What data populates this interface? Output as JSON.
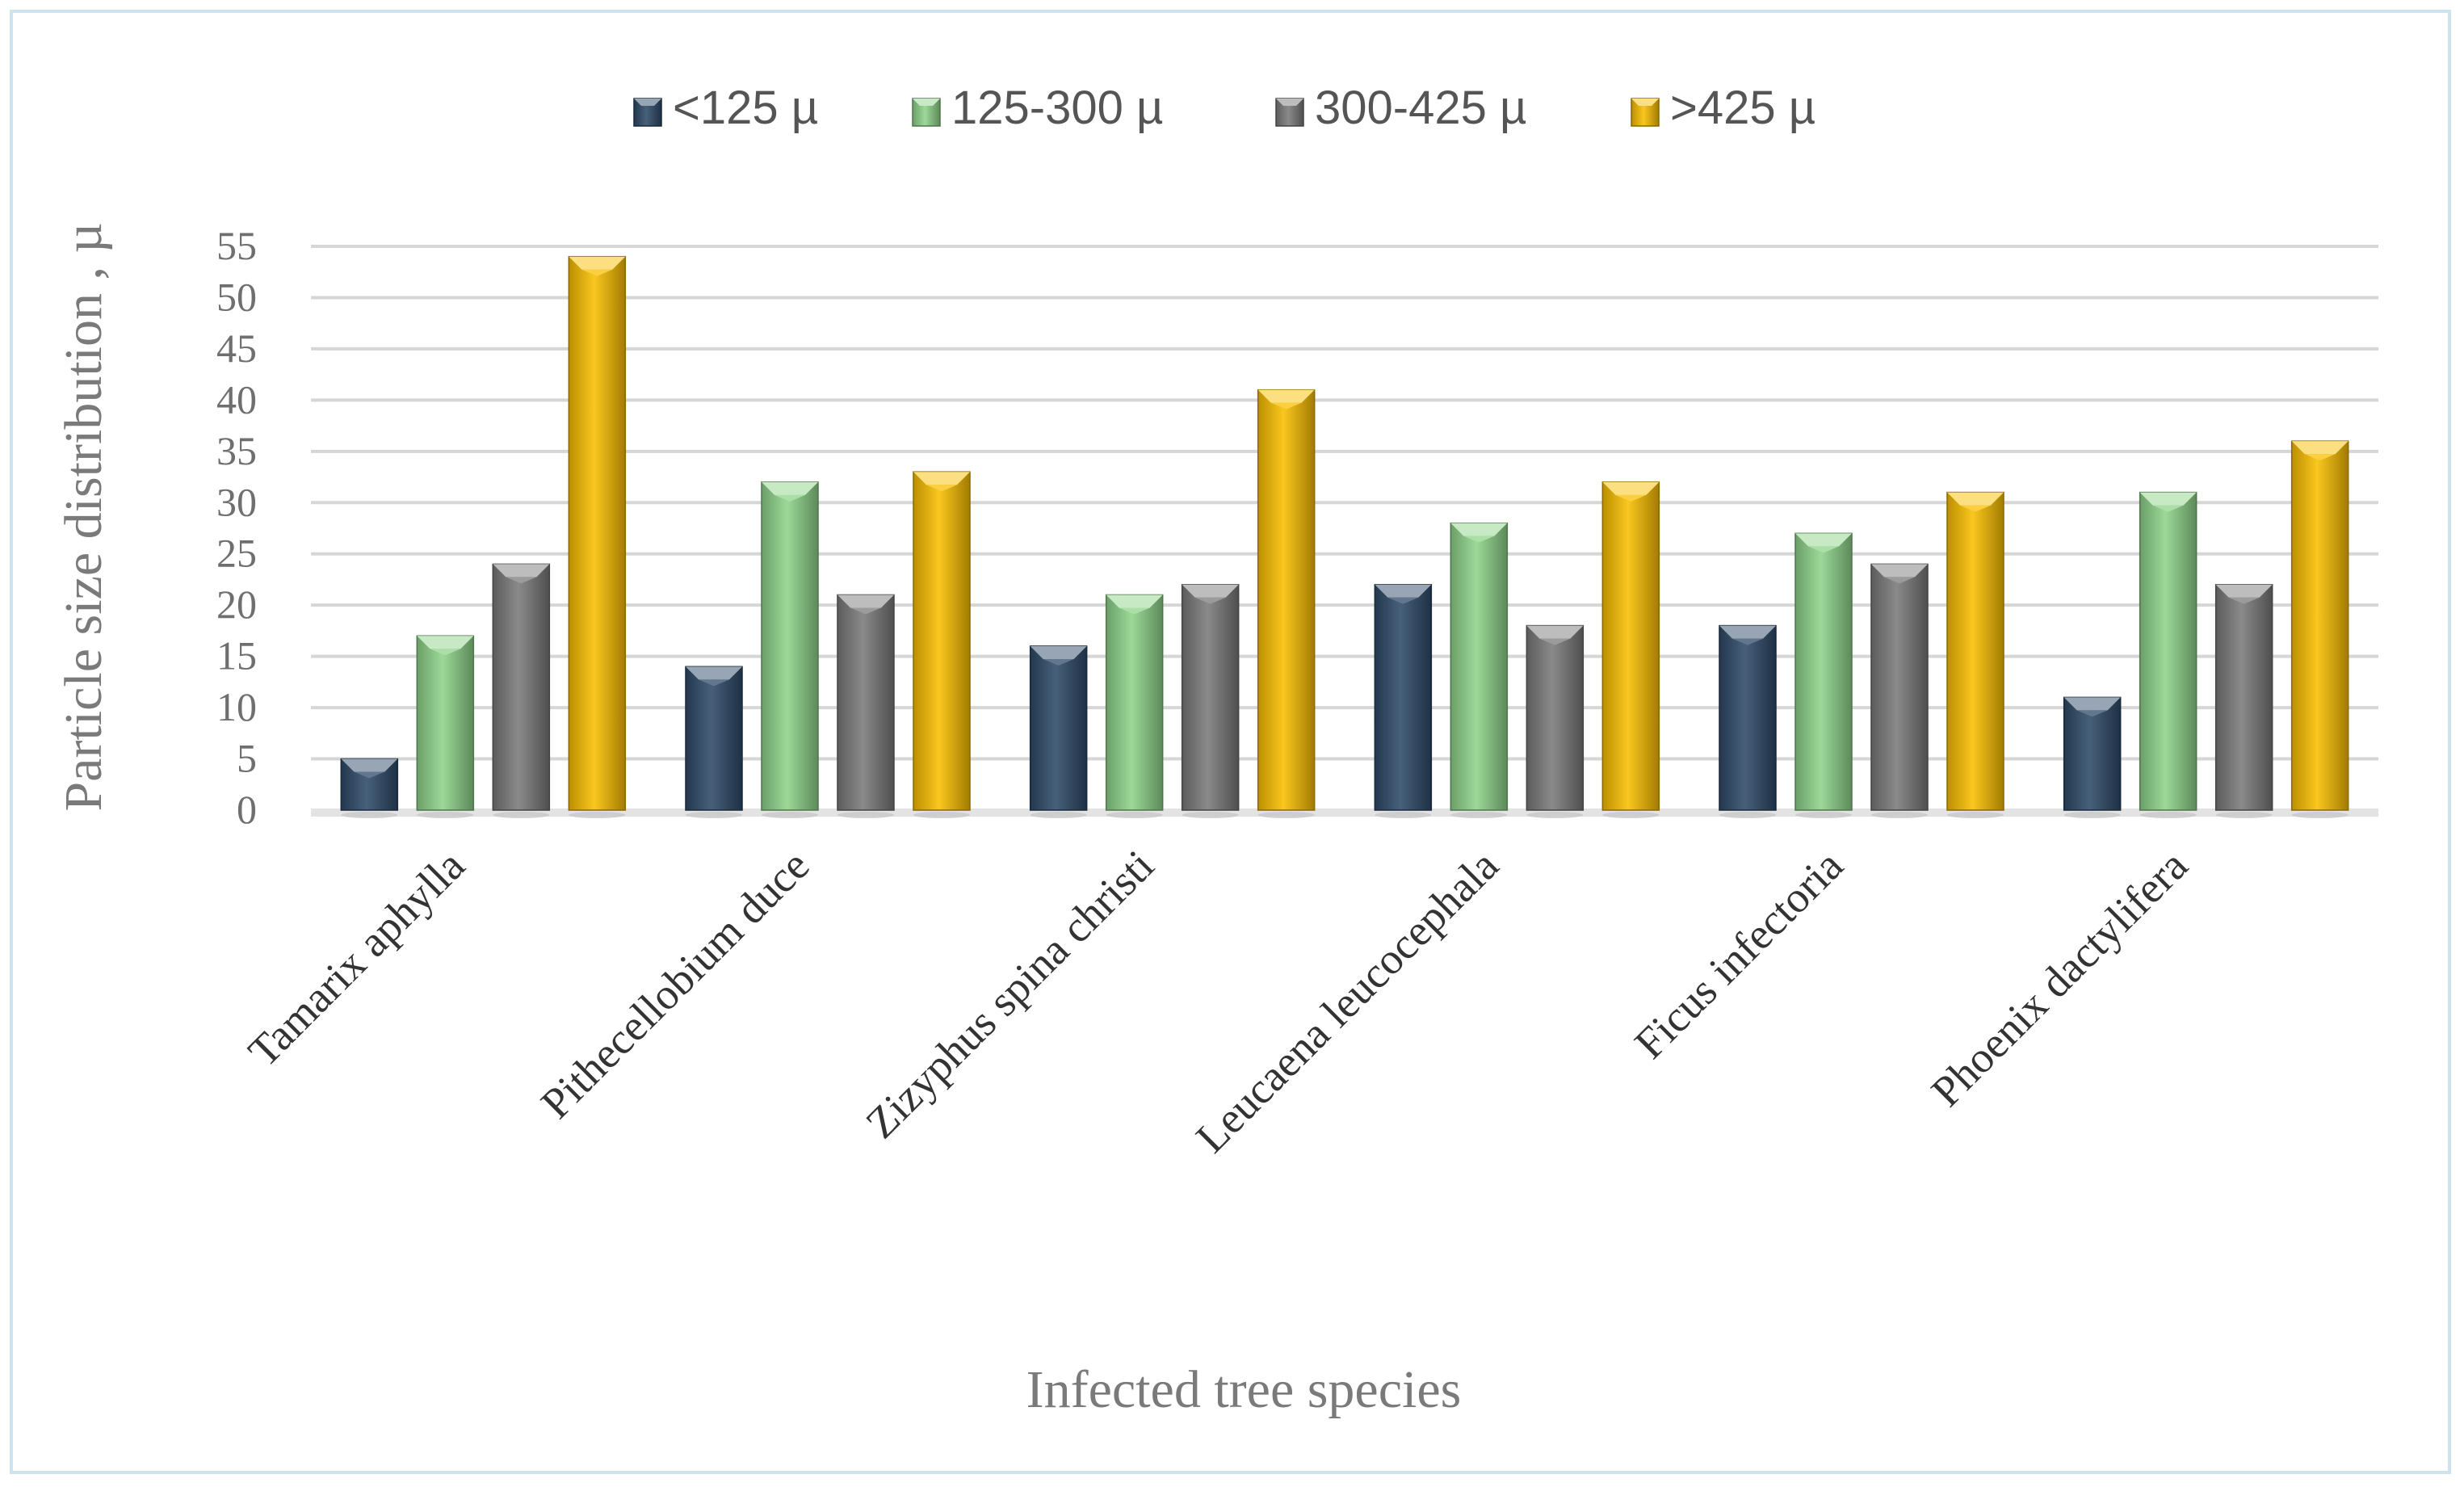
{
  "chart_data": {
    "type": "bar",
    "title": "",
    "xlabel": "Infected tree species",
    "ylabel": "Particle size distribution , µ",
    "ylim": [
      0,
      55
    ],
    "yticks": [
      0,
      5,
      10,
      15,
      20,
      25,
      30,
      35,
      40,
      45,
      50,
      55
    ],
    "grid": true,
    "legend_position": "top",
    "categories": [
      "Tamarix aphylla",
      "Pithecellobium duce",
      "Zizyphus spina christi",
      "Leucaena leucocephala",
      "Ficus infectoria",
      "Phoenix dactylifera"
    ],
    "series": [
      {
        "name": "<125 µ",
        "color": "#2e4a68",
        "values": [
          5,
          14,
          16,
          22,
          18,
          11
        ]
      },
      {
        "name": "125-300 µ",
        "color": "#8fd48a",
        "values": [
          17,
          32,
          21,
          28,
          27,
          31
        ]
      },
      {
        "name": "300-425 µ",
        "color": "#7a7a7a",
        "values": [
          24,
          21,
          22,
          18,
          24,
          22
        ]
      },
      {
        "name": ">425 µ",
        "color": "#f9bf00",
        "values": [
          54,
          33,
          41,
          32,
          31,
          36
        ]
      }
    ]
  }
}
